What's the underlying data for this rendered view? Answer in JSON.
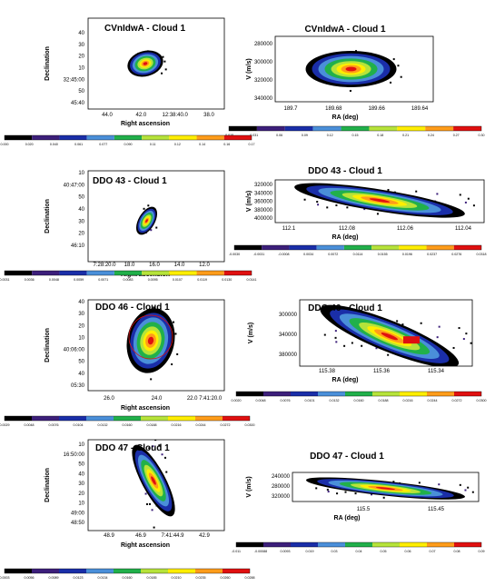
{
  "palette": [
    "#000000",
    "#3c1f7a",
    "#1a2ea8",
    "#4a8fd9",
    "#21b04a",
    "#b6e33a",
    "#ffee00",
    "#ff9c1a",
    "#e01010"
  ],
  "rows": [
    {
      "map": {
        "title": "CVnIdwA - Cloud 1",
        "xlabel": "Right ascension",
        "ylabel": "Declination",
        "yticks": [
          "40",
          "30",
          "20",
          "10",
          "32:45:00",
          "50",
          "45:40"
        ],
        "xticks": [
          "44.0",
          "42.0",
          "12:38:40.0",
          "38.0"
        ]
      },
      "pv": {
        "title": "CVnIdwA - Cloud 1",
        "xlabel": "RA (deg)",
        "ylabel": "V (m/s)",
        "yticks": [
          "280000",
          "300000",
          "320000",
          "340000"
        ],
        "xticks": [
          "189.7",
          "189.68",
          "189.66",
          "189.64"
        ]
      },
      "pv_colorbar": [
        "-0.015",
        "0.031",
        "0.06",
        "0.09",
        "0.12",
        "0.15",
        "0.18",
        "0.21",
        "0.24",
        "0.27",
        "0.30"
      ],
      "map_colorbar": [
        "0.000",
        "0.020",
        "0.040",
        "0.061",
        "0.077",
        "0.090",
        "0.11",
        "0.12",
        "0.14",
        "0.16",
        "0.17"
      ]
    },
    {
      "map": {
        "title": "DDO 43 - Cloud 1",
        "xlabel": "Right ascension",
        "ylabel": "Declination",
        "yticks": [
          "10",
          "40:47:00",
          "50",
          "40",
          "30",
          "20",
          "46:10"
        ],
        "xticks": [
          "7:28:20.0",
          "18.0",
          "16.0",
          "14.0",
          "12.0"
        ]
      },
      "pv": {
        "title": "DDO 43 - Cloud 1",
        "xlabel": "RA (deg)",
        "ylabel": "V (m/s)",
        "yticks": [
          "320000",
          "340000",
          "360000",
          "380000",
          "400000"
        ],
        "xticks": [
          "112.1",
          "112.08",
          "112.06",
          "112.04"
        ]
      },
      "pv_colorbar": [
        "-0.0030",
        "-0.0031",
        "-0.0008",
        "0.0034",
        "0.0072",
        "0.0114",
        "0.0155",
        "0.0196",
        "0.0237",
        "0.0276",
        "0.0318"
      ],
      "map_colorbar": [
        "0.0031",
        "0.0036",
        "0.0048",
        "0.0059",
        "0.0071",
        "0.0083",
        "0.0095",
        "0.0107",
        "0.0119",
        "0.0130",
        "0.0141"
      ]
    },
    {
      "map": {
        "title": "DDO 46 - Cloud 1",
        "xlabel": "Right ascension",
        "ylabel": "Declination",
        "yticks": [
          "40",
          "30",
          "20",
          "10",
          "40:06:00",
          "50",
          "40",
          "05:30"
        ],
        "xticks": [
          "26.0",
          "24.0",
          "22.0 7:41:20.0"
        ]
      },
      "pv": {
        "title": "DDO 46 - Cloud 1",
        "xlabel": "RA (deg)",
        "ylabel": "V (m/s)",
        "yticks": [
          "300000",
          "340000",
          "380000"
        ],
        "xticks": [
          "115.38",
          "115.36",
          "115.34"
        ]
      },
      "pv_colorbar": [
        "0.0020",
        "0.0048",
        "0.0076",
        "0.0101",
        "0.0132",
        "0.0160",
        "0.0188",
        "0.0216",
        "0.0244",
        "0.0272",
        "0.0300"
      ],
      "map_colorbar": [
        "0.0029",
        "0.0048",
        "0.0076",
        "0.0104",
        "0.0132",
        "0.0160",
        "0.0188",
        "0.0216",
        "0.0244",
        "0.0272",
        "0.0300"
      ]
    },
    {
      "map": {
        "title": "DDO 47 - Cloud 1",
        "xlabel": "Right ascension",
        "ylabel": "Declination",
        "yticks": [
          "10",
          "16:50:00",
          "50",
          "40",
          "30",
          "20",
          "10",
          "49:00",
          "48:50"
        ],
        "xticks": [
          "48.9",
          "46.9",
          "7:41:44.9",
          "42.9"
        ]
      },
      "pv": {
        "title": "DDO 47 - Cloud 1",
        "xlabel": "RA (deg)",
        "ylabel": "V (m/s)",
        "yticks": [
          "240000",
          "280000",
          "320000"
        ],
        "xticks": [
          "115.5",
          "115.45"
        ]
      },
      "pv_colorbar": [
        "-0.011",
        "-0.00088",
        "0.0093",
        "0.019",
        "0.03",
        "0.04",
        "0.05",
        "0.06",
        "0.07",
        "0.08",
        "0.09"
      ],
      "map_colorbar": [
        "0.0003",
        "0.0056",
        "0.0089",
        "0.0123",
        "0.0134",
        "0.0160",
        "0.0185",
        "0.0210",
        "0.0235",
        "0.0260",
        "0.0288"
      ]
    }
  ]
}
